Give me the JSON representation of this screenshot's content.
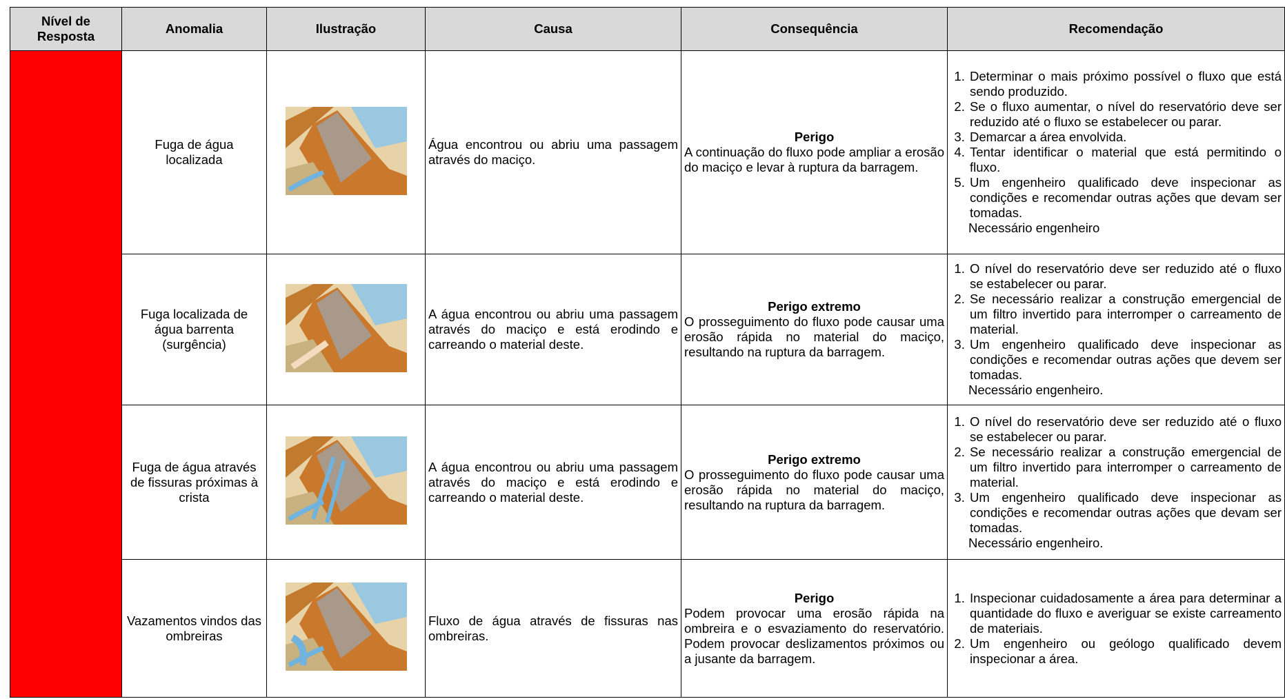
{
  "header": {
    "columns": [
      "Nível de Resposta",
      "Anomalia",
      "Ilustração",
      "Causa",
      "Consequência",
      "Recomendação"
    ]
  },
  "rows": [
    {
      "anomalia": "Fuga de água localizada",
      "causa": "Água encontrou ou abriu uma passagem através do maciço.",
      "consequencia": {
        "titulo": "Perigo",
        "texto": "A continuação do fluxo pode ampliar a erosão do maciço e levar à ruptura da barragem."
      },
      "recomendacoes": [
        "Determinar o mais próximo possível o fluxo que está sendo produzido.",
        "Se o fluxo aumentar, o nível do reservatório deve ser reduzido até o fluxo se estabelecer ou parar.",
        "Demarcar a área envolvida.",
        "Tentar identificar o material que está permitindo o fluxo.",
        "Um engenheiro qualificado deve inspecionar as condições e recomendar outras ações que devam ser tomadas."
      ],
      "nota": "Necessário engenheiro"
    },
    {
      "anomalia": "Fuga localizada de água barrenta (surgência)",
      "causa": "A água encontrou ou abriu uma passagem através do maciço e está erodindo e carreando o material deste.",
      "consequencia": {
        "titulo": "Perigo extremo",
        "texto": "O prosseguimento do fluxo pode causar uma erosão rápida no material do maciço, resultando na ruptura da barragem."
      },
      "recomendacoes": [
        "O nível do reservatório deve ser reduzido até o fluxo se estabelecer ou parar.",
        "Se necessário realizar a construção emergencial de um filtro invertido para interromper o carreamento de material.",
        "Um engenheiro qualificado deve inspecionar as condições e recomendar outras ações que devem ser tomadas."
      ],
      "nota": "Necessário engenheiro."
    },
    {
      "anomalia": "Fuga de água através de fissuras próximas à crista",
      "causa": "A água encontrou ou abriu uma passagem através do maciço e está erodindo e carreando o material deste.",
      "consequencia": {
        "titulo": "Perigo extremo",
        "texto": "O prosseguimento do fluxo pode causar uma erosão rápida no material do maciço, resultando na ruptura da barragem."
      },
      "recomendacoes": [
        "O nível do reservatório deve ser reduzido até o fluxo se estabelecer ou parar.",
        "Se necessário realizar a construção emergencial de um filtro invertido para interromper o carreamento de material.",
        "Um engenheiro qualificado deve inspecionar as condições e recomendar outras ações que devam ser tomadas."
      ],
      "nota": "Necessário engenheiro."
    },
    {
      "anomalia": "Vazamentos vindos das ombreiras",
      "causa": "Fluxo de água através de fissuras nas ombreiras.",
      "consequencia": {
        "titulo": "Perigo",
        "texto": "Podem provocar uma erosão rápida na ombreira e o esvaziamento do reservatório. Podem provocar deslizamentos próximos ou a jusante da barragem."
      },
      "recomendacoes": [
        "Inspecionar cuidadosamente a área para determinar a quantidade do fluxo e averiguar se existe carreamento de materiais.",
        "Um engenheiro ou geólogo qualificado devem inspecionar a área."
      ]
    }
  ]
}
